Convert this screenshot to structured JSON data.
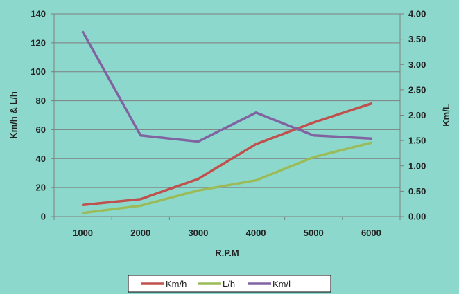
{
  "chart_data": {
    "type": "line",
    "x": [
      1000,
      2000,
      3000,
      4000,
      5000,
      6000
    ],
    "xlabel": "R.P.M",
    "ylabel": "Km/h & L/h",
    "y2label": "Km/L",
    "ylim": [
      0,
      140
    ],
    "y2lim": [
      0,
      4
    ],
    "yticks": [
      "0",
      "20",
      "40",
      "60",
      "80",
      "100",
      "120",
      "140"
    ],
    "y2ticks": [
      "0.00",
      "0.50",
      "1.00",
      "1.50",
      "2.00",
      "2.50",
      "3.00",
      "3.50",
      "4.00"
    ],
    "xticks": [
      "1000",
      "2000",
      "3000",
      "4000",
      "5000",
      "6000"
    ],
    "grid": true,
    "legend_position": "bottom",
    "series": [
      {
        "name": "Km/h",
        "axis": "left",
        "color": "#c0504d",
        "values": [
          8,
          12,
          26,
          50,
          65,
          78
        ]
      },
      {
        "name": "L/h",
        "axis": "left",
        "color": "#9bbb59",
        "values": [
          2.5,
          7.5,
          18,
          25,
          41,
          51
        ]
      },
      {
        "name": "Km/l",
        "axis": "right",
        "color": "#8064a2",
        "values": [
          3.64,
          1.6,
          1.48,
          2.05,
          1.6,
          1.54
        ]
      }
    ]
  }
}
